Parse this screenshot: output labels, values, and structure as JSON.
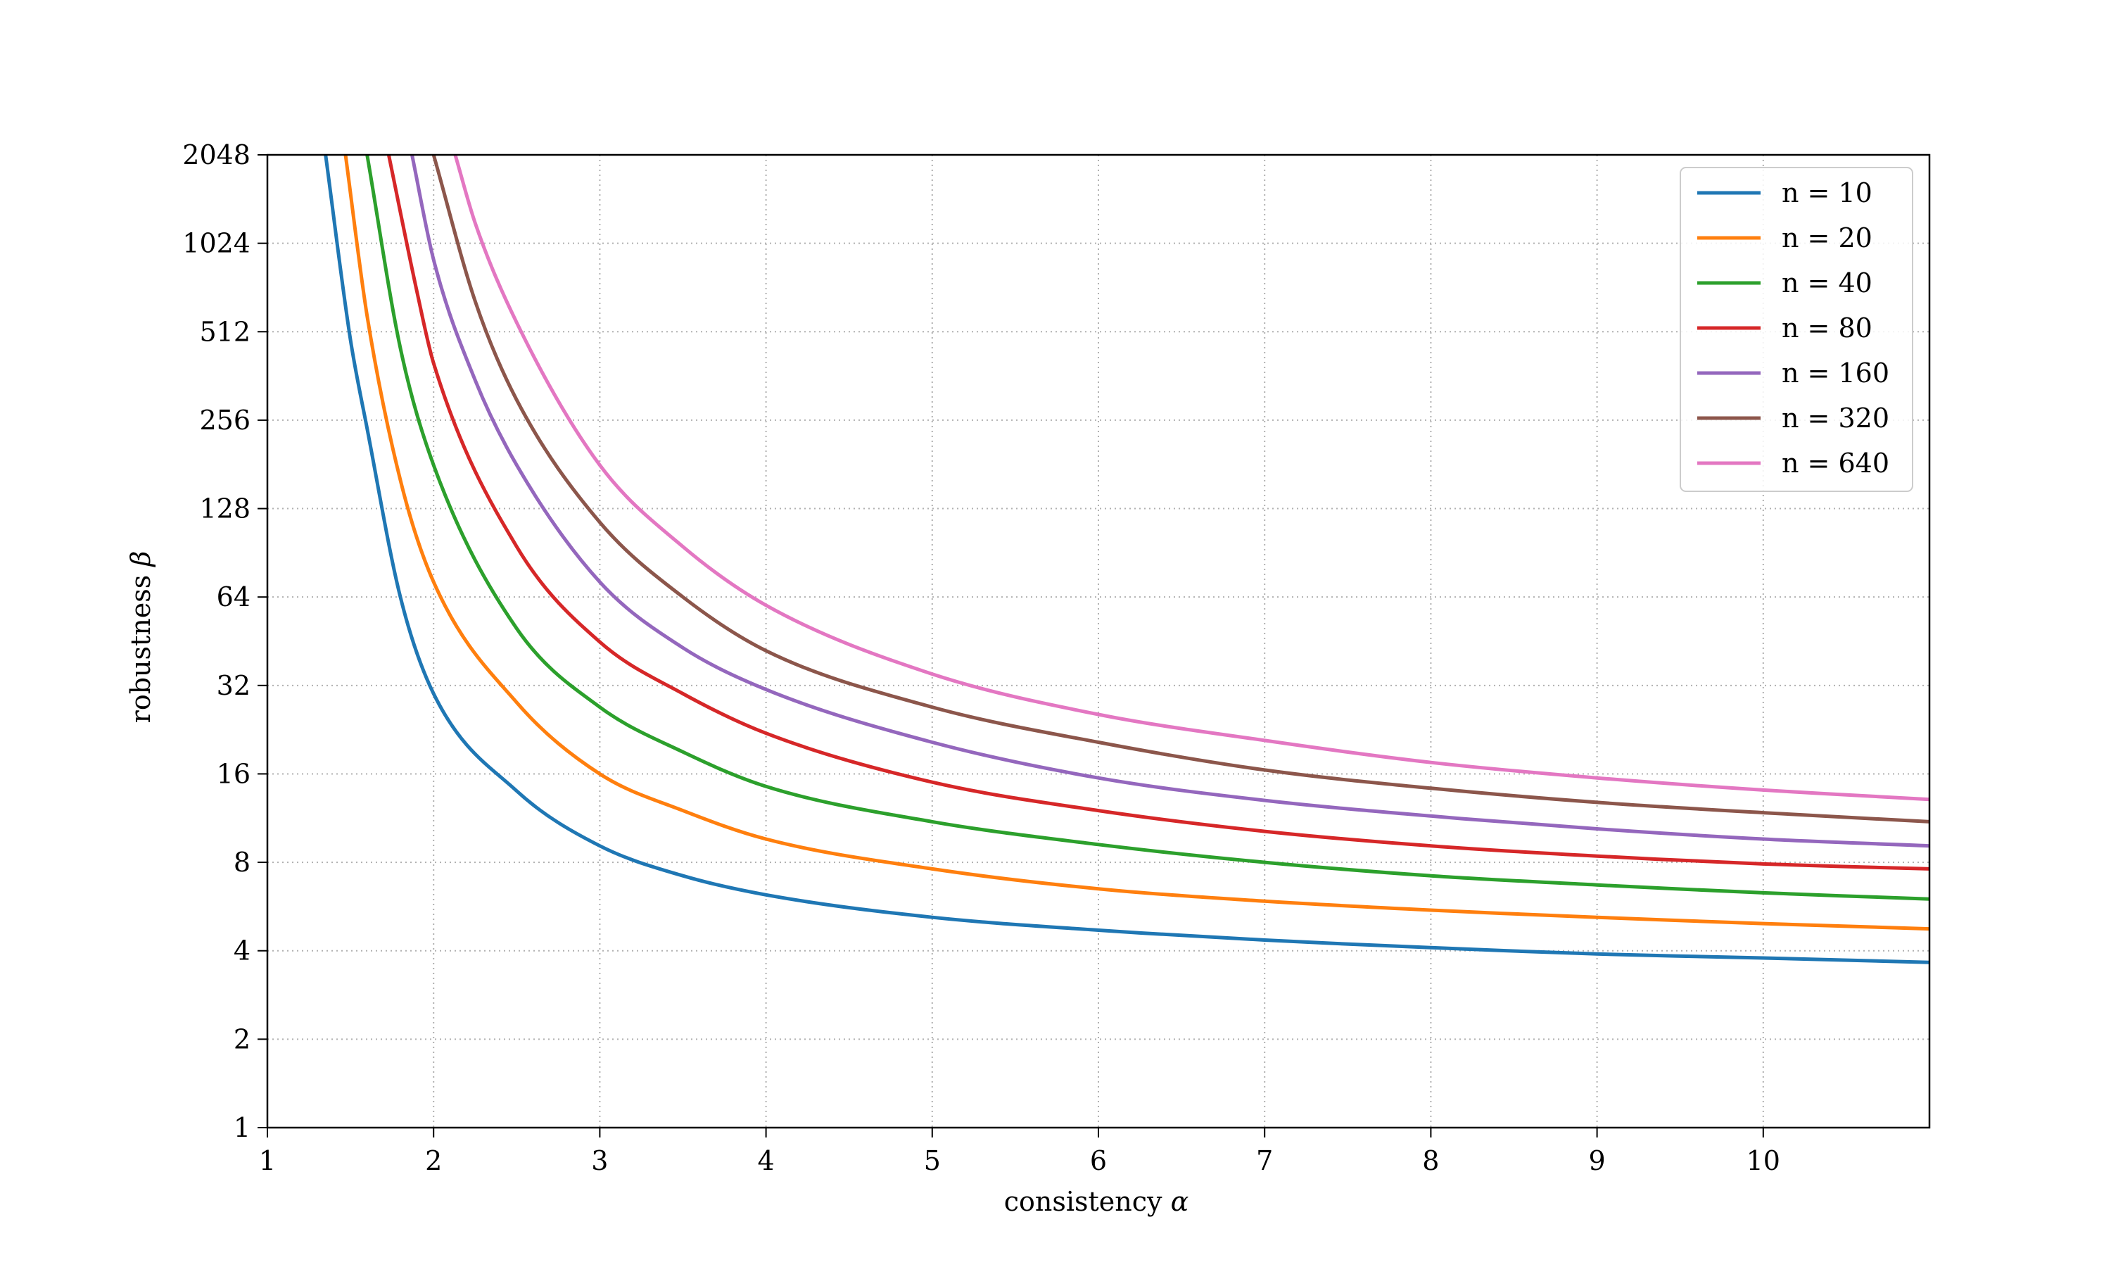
{
  "chart_data": {
    "type": "line",
    "xlabel": "consistency",
    "xlabel_symbol": "α",
    "ylabel": "robustness",
    "ylabel_symbol": "β",
    "xlim": [
      1,
      11
    ],
    "ylim": [
      1,
      2048
    ],
    "yscale": "log2",
    "grid": true,
    "legend_position": "top-right",
    "x_ticks": [
      1,
      2,
      3,
      4,
      5,
      6,
      7,
      8,
      9,
      10
    ],
    "x_tick_labels": [
      "1",
      "2",
      "3",
      "4",
      "5",
      "6",
      "7",
      "8",
      "9",
      "10"
    ],
    "y_ticks": [
      1,
      2,
      4,
      8,
      16,
      32,
      64,
      128,
      256,
      512,
      1024,
      2048
    ],
    "y_tick_labels": [
      "1",
      "2",
      "4",
      "8",
      "16",
      "32",
      "64",
      "128",
      "256",
      "512",
      "1024",
      "2048"
    ],
    "series": [
      {
        "name": "n = 10",
        "color": "#1f77b4",
        "x": [
          1.35,
          1.5,
          1.6,
          1.8,
          2,
          2.5,
          3,
          3.5,
          4,
          5,
          6,
          7,
          8,
          9,
          10,
          11
        ],
        "y": [
          2048,
          480,
          240,
          64,
          30,
          14,
          9.1,
          7.2,
          6.2,
          5.2,
          4.7,
          4.35,
          4.1,
          3.9,
          3.78,
          3.65
        ]
      },
      {
        "name": "n = 20",
        "color": "#ff7f0e",
        "x": [
          1.47,
          1.6,
          1.8,
          2,
          2.5,
          3,
          3.5,
          4,
          5,
          6,
          7,
          8,
          9,
          10,
          11
        ],
        "y": [
          2048,
          580,
          160,
          72,
          28,
          16,
          12,
          9.6,
          7.6,
          6.5,
          5.9,
          5.5,
          5.2,
          4.95,
          4.75
        ]
      },
      {
        "name": "n = 40",
        "color": "#2ca02c",
        "x": [
          1.6,
          1.8,
          2,
          2.5,
          3,
          3.5,
          4,
          5,
          6,
          7,
          8,
          9,
          10,
          11
        ],
        "y": [
          2048,
          450,
          180,
          50,
          27,
          19,
          14.5,
          11,
          9.2,
          8.0,
          7.2,
          6.7,
          6.3,
          6.0
        ]
      },
      {
        "name": "n = 80",
        "color": "#d62728",
        "x": [
          1.73,
          1.9,
          2,
          2.5,
          3,
          3.5,
          4,
          5,
          6,
          7,
          8,
          9,
          10,
          11
        ],
        "y": [
          2048,
          700,
          400,
          95,
          45,
          30,
          22,
          15,
          12,
          10.2,
          9.1,
          8.4,
          7.9,
          7.6
        ]
      },
      {
        "name": "n = 160",
        "color": "#9467bd",
        "x": [
          1.87,
          2,
          2.25,
          2.5,
          3,
          3.5,
          4,
          5,
          6,
          7,
          8,
          9,
          10,
          11
        ],
        "y": [
          2048,
          900,
          350,
          180,
          72,
          43,
          31,
          20.5,
          15.5,
          13,
          11.5,
          10.4,
          9.6,
          9.1
        ]
      },
      {
        "name": "n = 320",
        "color": "#8c564b",
        "x": [
          2,
          2.25,
          2.5,
          3,
          3.5,
          4,
          5,
          6,
          7,
          8,
          9,
          10,
          11
        ],
        "y": [
          2048,
          650,
          300,
          115,
          64,
          42,
          27,
          20.5,
          16.5,
          14.3,
          12.8,
          11.8,
          11
        ]
      },
      {
        "name": "n = 640",
        "color": "#e377c2",
        "x": [
          2.13,
          2.25,
          2.5,
          3,
          3.5,
          4,
          5,
          6,
          7,
          8,
          9,
          10,
          11
        ],
        "y": [
          2048,
          1200,
          550,
          180,
          95,
          60,
          35,
          25.5,
          20.8,
          17.5,
          15.5,
          14.1,
          13.1
        ]
      }
    ]
  }
}
